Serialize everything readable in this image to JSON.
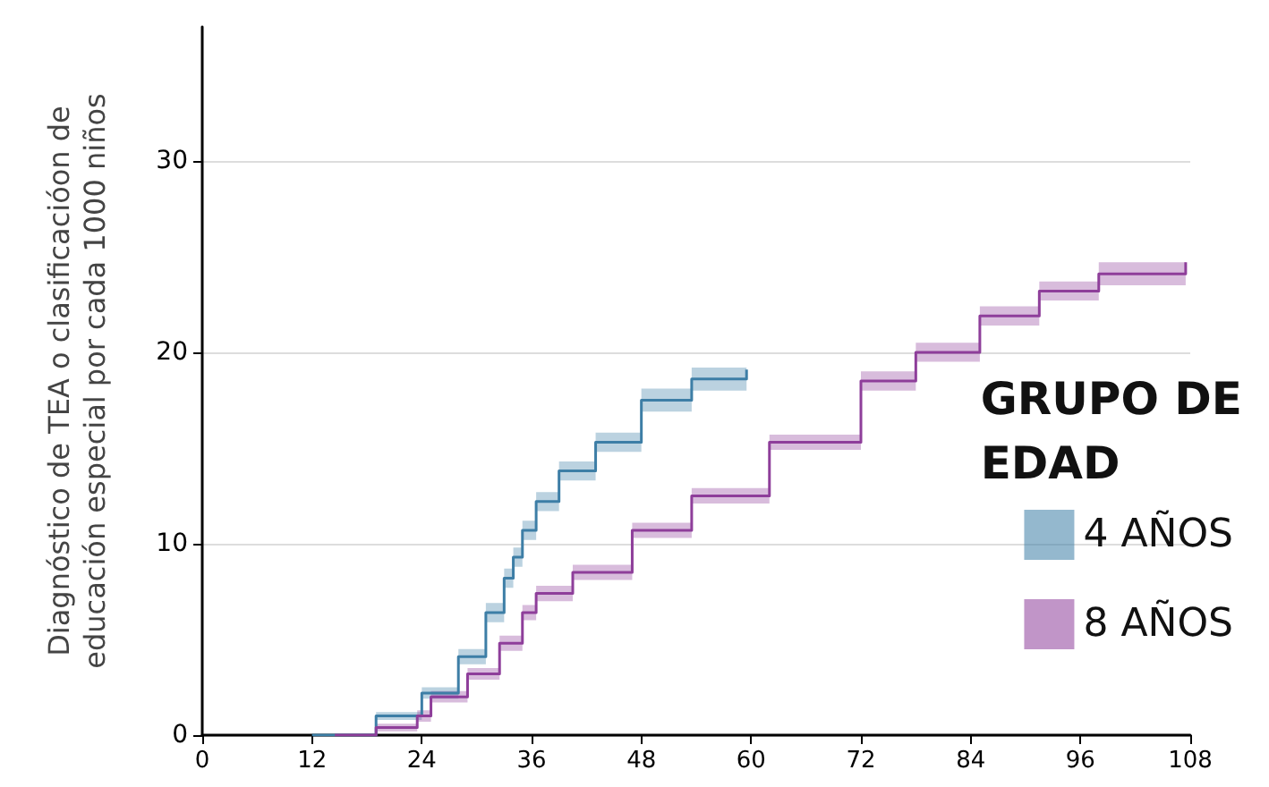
{
  "chart_data": {
    "type": "step",
    "ylabel": "Diagnóstico de TEA o clasificacióon de\neducación especial por cada 1000 niños",
    "legend_title": "GRUPO DE EDAD",
    "legend": "right",
    "grid": "y",
    "xlim": [
      0,
      108
    ],
    "xticks": [
      0,
      12,
      24,
      36,
      48,
      60,
      72,
      84,
      96,
      108
    ],
    "ylim": [
      0,
      37
    ],
    "yticks": [
      0,
      10,
      20,
      30
    ],
    "series": [
      {
        "name": "4 AÑOS",
        "color": "#3d7ea6",
        "x": [
          12,
          19,
          24,
          28,
          31,
          33,
          34,
          35,
          36.5,
          39,
          43,
          48,
          53.5,
          59.5
        ],
        "values": [
          0,
          1.0,
          2.2,
          4.1,
          6.4,
          8.2,
          9.3,
          10.7,
          12.2,
          13.8,
          15.3,
          17.5,
          18.6,
          19.1
        ],
        "lower": [
          0,
          0.8,
          1.9,
          3.7,
          5.9,
          7.7,
          8.8,
          10.2,
          11.7,
          13.3,
          14.8,
          16.9,
          18.0,
          18.5
        ],
        "upper": [
          0,
          1.2,
          2.5,
          4.5,
          6.9,
          8.7,
          9.8,
          11.2,
          12.7,
          14.3,
          15.8,
          18.1,
          19.2,
          19.7
        ]
      },
      {
        "name": "8 AÑOS",
        "color": "#8e3e9a",
        "x": [
          14.5,
          19,
          23.5,
          25,
          29,
          32.5,
          35,
          36.5,
          40.5,
          47,
          53.5,
          62,
          72,
          78,
          85,
          91.5,
          98,
          107.5
        ],
        "values": [
          0,
          0.4,
          1.0,
          2.0,
          3.2,
          4.8,
          6.4,
          7.4,
          8.5,
          10.7,
          12.5,
          15.3,
          18.5,
          20,
          21.9,
          23.2,
          24.1,
          24.7
        ],
        "lower": [
          0,
          0.2,
          0.7,
          1.7,
          2.9,
          4.4,
          6.0,
          7.0,
          8.1,
          10.3,
          12.1,
          14.9,
          18.0,
          19.5,
          21.4,
          22.7,
          23.5,
          24.1
        ],
        "upper": [
          0,
          0.6,
          1.3,
          2.3,
          3.5,
          5.2,
          6.8,
          7.8,
          8.9,
          11.1,
          12.9,
          15.7,
          19.0,
          20.5,
          22.4,
          23.7,
          24.7,
          25.3
        ]
      }
    ]
  }
}
